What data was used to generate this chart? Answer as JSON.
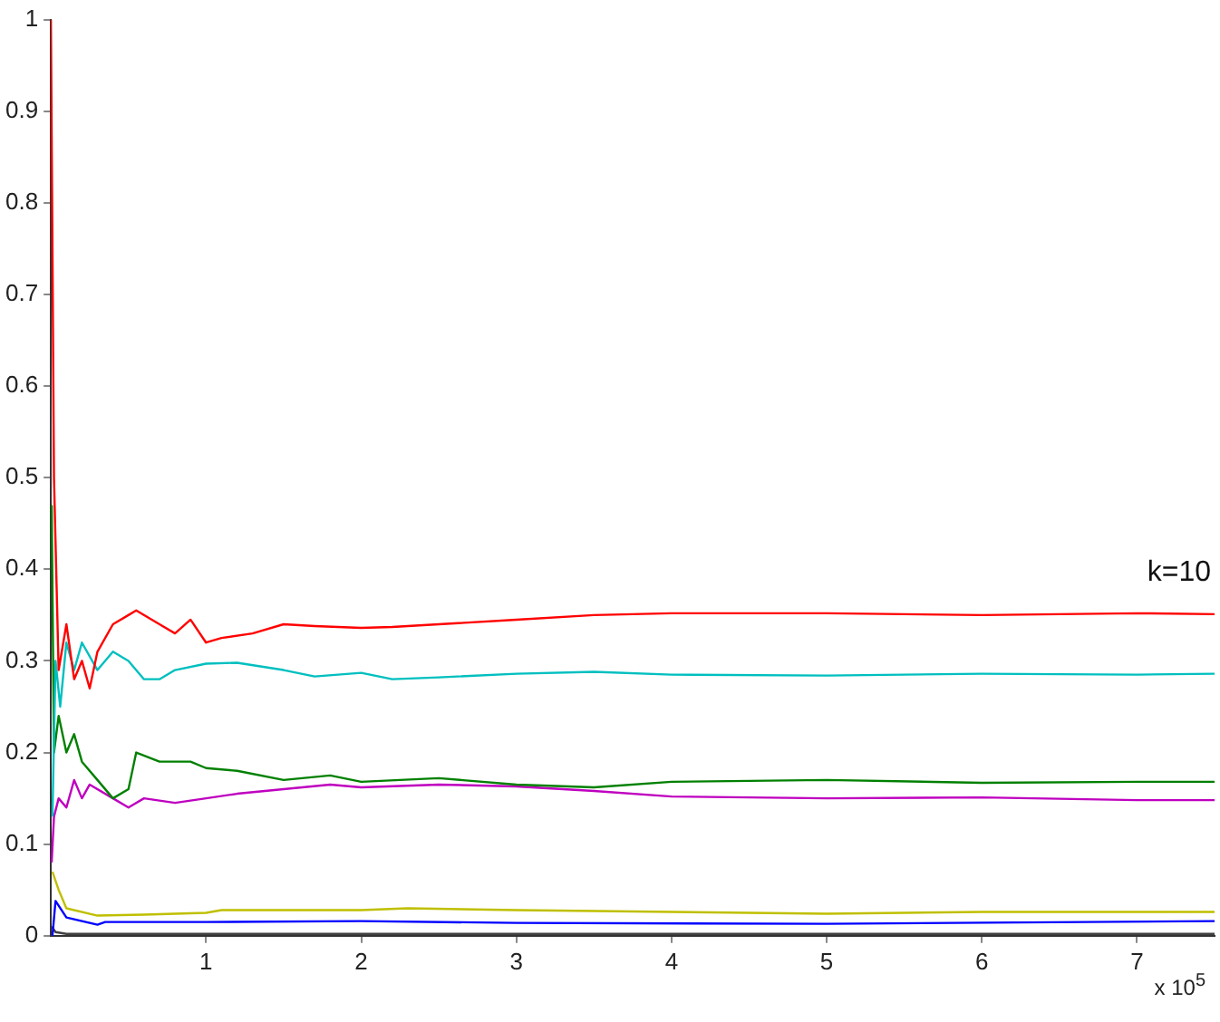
{
  "chart_data": {
    "type": "line",
    "xlabel": "x 10$^{5}$",
    "xlim": [
      0,
      7.5
    ],
    "xticks": [
      1,
      2,
      3,
      4,
      5,
      6,
      7
    ],
    "ylim": [
      0,
      1
    ],
    "yticks": [
      0,
      0.1,
      0.2,
      0.3,
      0.4,
      0.5,
      0.6,
      0.7,
      0.8,
      0.9,
      1
    ],
    "grid": false,
    "legend": false,
    "marker": "none",
    "line_style": "solid",
    "annotations": [
      "k=10"
    ],
    "series": [
      {
        "color": "#ff0000",
        "x": [
          0,
          0.005,
          0.02,
          0.05,
          0.1,
          0.15,
          0.2,
          0.25,
          0.3,
          0.4,
          0.5,
          0.55,
          0.7,
          0.8,
          0.9,
          1.0,
          1.1,
          1.3,
          1.5,
          1.7,
          2.0,
          2.2,
          2.5,
          3,
          3.5,
          4,
          5,
          6,
          7,
          7.5
        ],
        "values": [
          1,
          1,
          0.5,
          0.29,
          0.34,
          0.28,
          0.3,
          0.27,
          0.31,
          0.34,
          0.35,
          0.355,
          0.34,
          0.33,
          0.345,
          0.32,
          0.325,
          0.33,
          0.34,
          0.338,
          0.336,
          0.337,
          0.34,
          0.345,
          0.35,
          0.352,
          0.352,
          0.35,
          0.352,
          0.351
        ]
      },
      {
        "color": "#00bfbf",
        "x": [
          0.01,
          0.03,
          0.06,
          0.1,
          0.15,
          0.2,
          0.3,
          0.4,
          0.5,
          0.6,
          0.7,
          0.8,
          1.0,
          1.2,
          1.5,
          1.7,
          2,
          2.2,
          2.5,
          3,
          3.5,
          4,
          5,
          6,
          7,
          7.5
        ],
        "values": [
          0.13,
          0.3,
          0.25,
          0.32,
          0.29,
          0.32,
          0.29,
          0.31,
          0.3,
          0.28,
          0.28,
          0.29,
          0.297,
          0.298,
          0.29,
          0.283,
          0.287,
          0.28,
          0.282,
          0.286,
          0.288,
          0.285,
          0.284,
          0.286,
          0.285,
          0.286
        ]
      },
      {
        "color": "#008000",
        "x": [
          0.005,
          0.02,
          0.05,
          0.1,
          0.15,
          0.2,
          0.3,
          0.4,
          0.5,
          0.55,
          0.7,
          0.9,
          1.0,
          1.2,
          1.5,
          1.8,
          2.0,
          2.5,
          3,
          3.5,
          4,
          5,
          6,
          7,
          7.5
        ],
        "values": [
          0.47,
          0.2,
          0.24,
          0.2,
          0.22,
          0.19,
          0.17,
          0.15,
          0.16,
          0.2,
          0.19,
          0.19,
          0.183,
          0.18,
          0.17,
          0.175,
          0.168,
          0.172,
          0.165,
          0.162,
          0.168,
          0.17,
          0.167,
          0.168,
          0.168
        ]
      },
      {
        "color": "#bf00bf",
        "x": [
          0.005,
          0.02,
          0.05,
          0.1,
          0.15,
          0.2,
          0.25,
          0.4,
          0.5,
          0.6,
          0.8,
          1.0,
          1.2,
          1.5,
          1.8,
          2,
          2.5,
          3,
          3.5,
          4,
          5,
          6,
          7,
          7.5
        ],
        "values": [
          0.08,
          0.13,
          0.15,
          0.14,
          0.17,
          0.15,
          0.165,
          0.15,
          0.14,
          0.15,
          0.145,
          0.15,
          0.155,
          0.16,
          0.165,
          0.162,
          0.165,
          0.163,
          0.158,
          0.152,
          0.15,
          0.151,
          0.148,
          0.148
        ]
      },
      {
        "color": "#bfbf00",
        "x": [
          0.01,
          0.05,
          0.1,
          0.3,
          0.6,
          1,
          1.1,
          2,
          2.3,
          3,
          5,
          6,
          7.5
        ],
        "values": [
          0.07,
          0.05,
          0.03,
          0.022,
          0.023,
          0.025,
          0.028,
          0.028,
          0.03,
          0.028,
          0.024,
          0.026,
          0.026
        ]
      },
      {
        "color": "#0000ff",
        "x": [
          0.01,
          0.03,
          0.1,
          0.3,
          0.35,
          1,
          2,
          3,
          5,
          7.5
        ],
        "values": [
          0,
          0.038,
          0.02,
          0.012,
          0.015,
          0.015,
          0.016,
          0.014,
          0.013,
          0.016
        ]
      },
      {
        "color": "#404040",
        "x": [
          0.005,
          0.03,
          0.1,
          7.5
        ],
        "values": [
          0.01,
          0.004,
          0.002,
          0.002
        ]
      }
    ]
  }
}
